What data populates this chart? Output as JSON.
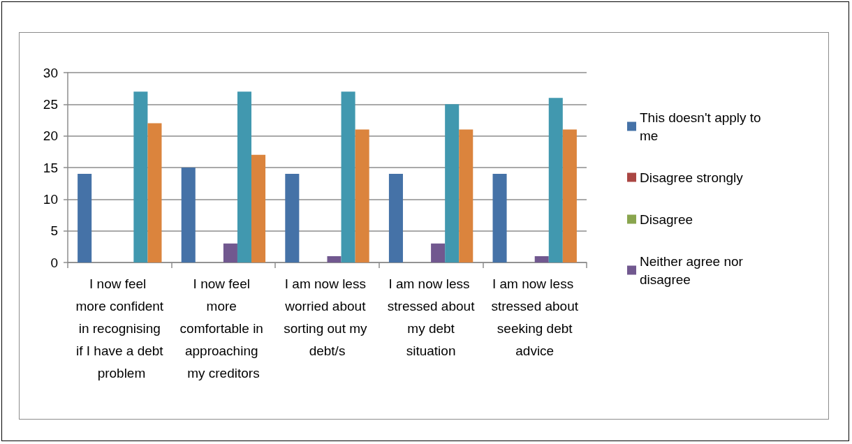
{
  "chart_data": {
    "type": "bar",
    "categories": [
      "I now feel more confident in recognising if I have a debt problem",
      "I now feel more comfortable in approaching my creditors",
      "I am now less worried about sorting out my debt/s",
      "I am now less stressed about my debt situation",
      "I am now less stressed about seeking debt advice"
    ],
    "series": [
      {
        "name": "This doesn't apply to me",
        "color": "#4572a7",
        "values": [
          14,
          15,
          14,
          14,
          14
        ]
      },
      {
        "name": "Disagree strongly",
        "color": "#aa4643",
        "values": [
          0,
          0,
          0,
          0,
          0
        ]
      },
      {
        "name": "Disagree",
        "color": "#89a54e",
        "values": [
          0,
          0,
          0,
          0,
          0
        ]
      },
      {
        "name": "Neither agree nor disagree",
        "color": "#71588f",
        "values": [
          0,
          3,
          1,
          3,
          1
        ]
      },
      {
        "color": "#4198af",
        "values": [
          27,
          27,
          27,
          25,
          26
        ]
      },
      {
        "color": "#db843d",
        "values": [
          22,
          17,
          21,
          21,
          21
        ]
      }
    ],
    "ylim": [
      0,
      30
    ],
    "yticks": [
      0,
      5,
      10,
      15,
      20,
      25,
      30
    ],
    "grid": "y",
    "legend": "right"
  }
}
